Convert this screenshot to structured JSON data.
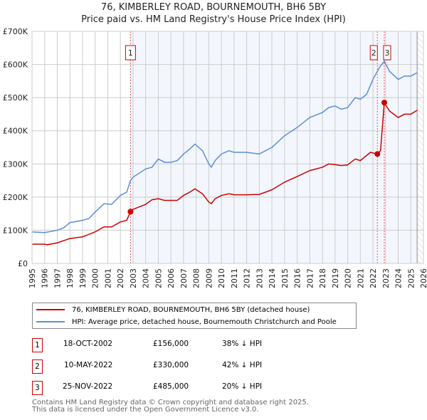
{
  "chart_data": {
    "type": "line",
    "title": "76, KIMBERLEY ROAD, BOURNEMOUTH, BH6 5BY",
    "subtitle": "Price paid vs. HM Land Registry's House Price Index (HPI)",
    "xlim": [
      1995,
      2026
    ],
    "ylim": [
      0,
      700000
    ],
    "x_ticks": [
      "1995",
      "1996",
      "1997",
      "1998",
      "1999",
      "2000",
      "2001",
      "2002",
      "2003",
      "2004",
      "2005",
      "2006",
      "2007",
      "2008",
      "2009",
      "2010",
      "2011",
      "2012",
      "2013",
      "2014",
      "2015",
      "2016",
      "2017",
      "2018",
      "2019",
      "2020",
      "2021",
      "2022",
      "2023",
      "2024",
      "2025",
      "2026"
    ],
    "y_ticks": [
      {
        "v": 0,
        "label": "£0"
      },
      {
        "v": 100000,
        "label": "£100K"
      },
      {
        "v": 200000,
        "label": "£200K"
      },
      {
        "v": 300000,
        "label": "£300K"
      },
      {
        "v": 400000,
        "label": "£400K"
      },
      {
        "v": 500000,
        "label": "£500K"
      },
      {
        "v": 600000,
        "label": "£600K"
      },
      {
        "v": 700000,
        "label": "£700K"
      }
    ],
    "grid": true,
    "shaded_range": [
      2002.8,
      2025.5
    ],
    "series": [
      {
        "name": "76, KIMBERLEY ROAD, BOURNEMOUTH, BH6 5BY (detached house)",
        "color": "#cc0000",
        "x": [
          1995,
          1996,
          1996.2,
          1997,
          1998,
          1999,
          2000,
          2000.7,
          2001.3,
          2002,
          2002.5,
          2002.8,
          2003,
          2004,
          2004.5,
          2005,
          2005.5,
          2006,
          2006.5,
          2007,
          2007.5,
          2007.9,
          2008.5,
          2009,
          2009.2,
          2009.5,
          2010,
          2010.6,
          2011,
          2012,
          2013,
          2014,
          2015,
          2016,
          2017,
          2018,
          2018.5,
          2019,
          2019.5,
          2020,
          2020.6,
          2021,
          2021.8,
          2022.35,
          2022.6,
          2022.9,
          2023.3,
          2024,
          2024.5,
          2025,
          2025.5
        ],
        "y": [
          58000,
          58000,
          56000,
          62000,
          75000,
          80000,
          95000,
          110000,
          110000,
          125000,
          130000,
          156000,
          163000,
          178000,
          192000,
          195000,
          190000,
          190000,
          190000,
          205000,
          215000,
          225000,
          210000,
          185000,
          180000,
          195000,
          205000,
          210000,
          207000,
          207000,
          208000,
          222000,
          245000,
          262000,
          280000,
          290000,
          300000,
          298000,
          295000,
          297000,
          315000,
          310000,
          335000,
          330000,
          340000,
          485000,
          460000,
          440000,
          450000,
          450000,
          462000
        ]
      },
      {
        "name": "HPI: Average price, detached house, Bournemouth Christchurch and Poole",
        "color": "#5b8fd6",
        "x": [
          1995,
          1996,
          1997,
          1997.5,
          1998,
          1999,
          1999.5,
          2000,
          2000.7,
          2001.3,
          2002,
          2002.5,
          2002.8,
          2003,
          2004,
          2004.5,
          2005,
          2005.5,
          2006,
          2006.5,
          2007,
          2007.5,
          2007.9,
          2008.5,
          2009,
          2009.2,
          2009.5,
          2010,
          2010.6,
          2011,
          2012,
          2013,
          2014,
          2015,
          2016,
          2017,
          2018,
          2018.5,
          2019,
          2019.5,
          2020,
          2020.6,
          2021,
          2021.5,
          2022,
          2022.5,
          2022.9,
          2023.3,
          2024,
          2024.5,
          2025,
          2025.5
        ],
        "y": [
          95000,
          93000,
          100000,
          107000,
          123000,
          130000,
          135000,
          155000,
          180000,
          178000,
          205000,
          215000,
          250000,
          260000,
          285000,
          290000,
          315000,
          305000,
          305000,
          310000,
          330000,
          345000,
          360000,
          340000,
          300000,
          290000,
          310000,
          330000,
          340000,
          335000,
          335000,
          330000,
          350000,
          385000,
          410000,
          440000,
          455000,
          470000,
          475000,
          465000,
          470000,
          500000,
          495000,
          510000,
          555000,
          590000,
          610000,
          580000,
          555000,
          565000,
          565000,
          575000
        ]
      }
    ],
    "sales": [
      {
        "id": "1",
        "x": 2002.8,
        "price": 156000,
        "date": "18-OCT-2002",
        "price_label": "£156,000",
        "hpi": "38% ↓ HPI"
      },
      {
        "id": "2",
        "x": 2022.35,
        "price": 330000,
        "date": "10-MAY-2022",
        "price_label": "£330,000",
        "hpi": "42% ↓ HPI"
      },
      {
        "id": "3",
        "x": 2022.9,
        "price": 485000,
        "date": "25-NOV-2022",
        "price_label": "£485,000",
        "hpi": "20% ↓ HPI"
      }
    ],
    "footer": [
      "Contains HM Land Registry data © Crown copyright and database right 2025.",
      "This data is licensed under the Open Government Licence v3.0."
    ]
  }
}
